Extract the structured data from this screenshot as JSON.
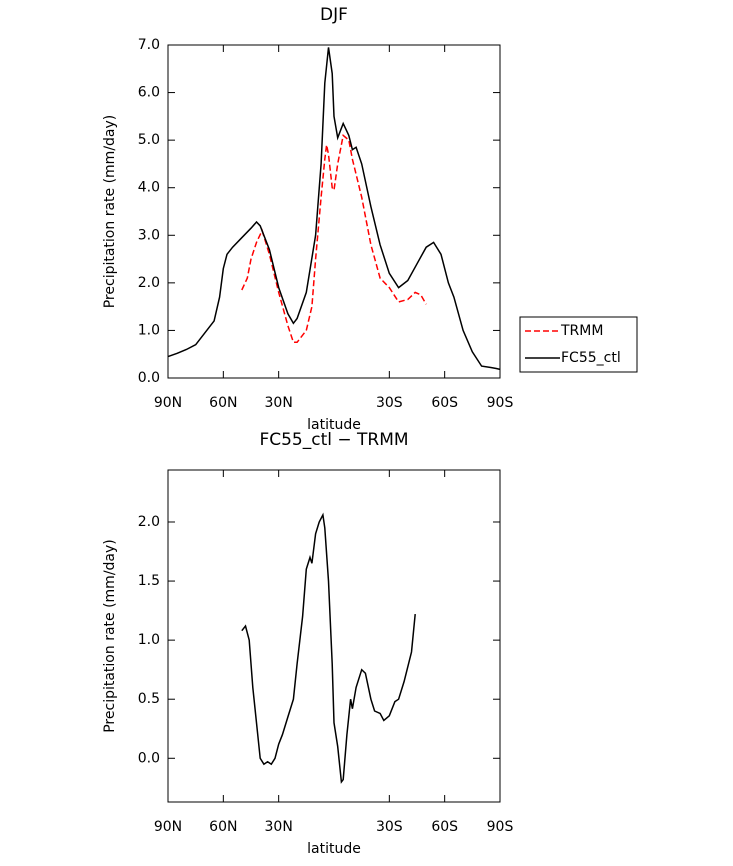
{
  "chart_data": [
    {
      "type": "line",
      "title": "DJF",
      "x_label": "latitude",
      "y_label": "Precipitation rate (mm/day)",
      "xlim": [
        90,
        -90
      ],
      "ylim": [
        0,
        7
      ],
      "xticks": [
        {
          "value": 90,
          "label": "90N"
        },
        {
          "value": 60,
          "label": "60N"
        },
        {
          "value": 30,
          "label": "30N"
        },
        {
          "value": -30,
          "label": "30S"
        },
        {
          "value": -60,
          "label": "60S"
        },
        {
          "value": -90,
          "label": "90S"
        }
      ],
      "yticks": [
        {
          "value": 0,
          "label": "0.0"
        },
        {
          "value": 1,
          "label": "1.0"
        },
        {
          "value": 2,
          "label": "2.0"
        },
        {
          "value": 3,
          "label": "3.0"
        },
        {
          "value": 4,
          "label": "4.0"
        },
        {
          "value": 5,
          "label": "5.0"
        },
        {
          "value": 6,
          "label": "6.0"
        },
        {
          "value": 7,
          "label": "7.0"
        }
      ],
      "legend": "right",
      "series": [
        {
          "name": "TRMM",
          "color": "#ff0000",
          "dashed": true,
          "x": [
            50,
            47,
            45,
            42,
            39,
            35,
            30,
            25,
            22,
            20,
            15,
            12,
            10,
            7,
            5,
            4,
            3,
            1,
            0,
            -2,
            -5,
            -8,
            -10,
            -15,
            -20,
            -25,
            -30,
            -35,
            -40,
            -44,
            -47,
            -50
          ],
          "values": [
            1.85,
            2.1,
            2.5,
            2.85,
            3.1,
            2.6,
            1.8,
            1.1,
            0.75,
            0.75,
            1.0,
            1.5,
            2.5,
            3.8,
            4.6,
            4.9,
            4.7,
            4.0,
            3.95,
            4.5,
            5.1,
            5.0,
            4.6,
            3.8,
            2.8,
            2.1,
            1.9,
            1.6,
            1.65,
            1.8,
            1.75,
            1.55
          ]
        },
        {
          "name": "FC55_ctl",
          "color": "#000000",
          "dashed": false,
          "x": [
            90,
            85,
            80,
            75,
            70,
            65,
            62,
            60,
            58,
            55,
            50,
            45,
            42,
            40,
            35,
            30,
            25,
            22,
            20,
            15,
            10,
            7,
            5,
            3,
            1,
            0,
            -2,
            -5,
            -8,
            -10,
            -12,
            -15,
            -20,
            -25,
            -30,
            -35,
            -40,
            -45,
            -50,
            -54,
            -58,
            -62,
            -65,
            -70,
            -75,
            -80,
            -85,
            -88,
            -90
          ],
          "values": [
            0.45,
            0.52,
            0.6,
            0.7,
            0.95,
            1.2,
            1.7,
            2.3,
            2.6,
            2.75,
            2.95,
            3.15,
            3.28,
            3.2,
            2.7,
            1.9,
            1.35,
            1.15,
            1.25,
            1.8,
            3.0,
            4.5,
            6.2,
            6.95,
            6.4,
            5.5,
            5.05,
            5.35,
            5.1,
            4.8,
            4.85,
            4.5,
            3.6,
            2.8,
            2.2,
            1.9,
            2.05,
            2.4,
            2.75,
            2.85,
            2.6,
            2.0,
            1.7,
            1.0,
            0.55,
            0.25,
            0.22,
            0.2,
            0.18
          ]
        }
      ]
    },
    {
      "type": "line",
      "title": "FC55_ctl − TRMM",
      "x_label": "latitude",
      "y_label": "Precipitation rate (mm/day)",
      "xlim": [
        90,
        -90
      ],
      "ylim": [
        -0.37,
        2.44
      ],
      "xticks": [
        {
          "value": 90,
          "label": "90N"
        },
        {
          "value": 60,
          "label": "60N"
        },
        {
          "value": 30,
          "label": "30N"
        },
        {
          "value": -30,
          "label": "30S"
        },
        {
          "value": -60,
          "label": "60S"
        },
        {
          "value": -90,
          "label": "90S"
        }
      ],
      "yticks": [
        {
          "value": 0,
          "label": "0.0"
        },
        {
          "value": 0.5,
          "label": "0.5"
        },
        {
          "value": 1,
          "label": "1.0"
        },
        {
          "value": 1.5,
          "label": "1.5"
        },
        {
          "value": 2,
          "label": "2.0"
        }
      ],
      "series": [
        {
          "color": "#000000",
          "dashed": false,
          "x": [
            50,
            48,
            46,
            44,
            42,
            40,
            38,
            36,
            34,
            32,
            30,
            28,
            25,
            22,
            20,
            17,
            15,
            13,
            12,
            10,
            8,
            6,
            5,
            3,
            1,
            0,
            -2,
            -4,
            -5,
            -7,
            -9,
            -10,
            -12,
            -15,
            -17,
            -20,
            -22,
            -25,
            -27,
            -30,
            -33,
            -35,
            -38,
            -42,
            -44
          ],
          "values": [
            1.08,
            1.12,
            1.0,
            0.6,
            0.3,
            0.0,
            -0.05,
            -0.03,
            -0.05,
            0.0,
            0.12,
            0.2,
            0.35,
            0.5,
            0.8,
            1.2,
            1.6,
            1.7,
            1.65,
            1.9,
            2.0,
            2.06,
            1.95,
            1.5,
            0.8,
            0.3,
            0.1,
            -0.2,
            -0.18,
            0.2,
            0.5,
            0.42,
            0.6,
            0.75,
            0.72,
            0.5,
            0.4,
            0.38,
            0.32,
            0.36,
            0.48,
            0.5,
            0.65,
            0.9,
            1.22
          ]
        }
      ]
    }
  ]
}
